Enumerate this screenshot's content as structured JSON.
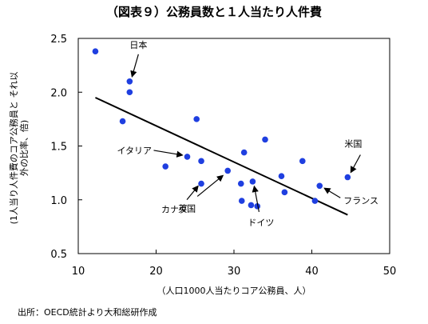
{
  "chart_data": {
    "type": "scatter",
    "title": "（図表９）公務員数と１人当たり人件費",
    "xlabel": "（人口1000人当たりコア公務員、人）",
    "ylabel": "(1人当り人件費のコア公務員と それ以外の比率、倍)",
    "source": "出所：OECD統計より大和総研作成",
    "xlim": [
      10,
      50
    ],
    "ylim": [
      0.5,
      2.5
    ],
    "x_ticks": [
      "10",
      "20",
      "30",
      "40",
      "50"
    ],
    "y_ticks": [
      "0.5",
      "1.0",
      "1.5",
      "2.0",
      "2.5"
    ],
    "grid": false,
    "points": [
      {
        "x": 12.2,
        "y": 2.38
      },
      {
        "x": 16.6,
        "y": 2.1
      },
      {
        "x": 16.6,
        "y": 2.0
      },
      {
        "x": 15.7,
        "y": 1.73
      },
      {
        "x": 25.2,
        "y": 1.75
      },
      {
        "x": 21.2,
        "y": 1.31
      },
      {
        "x": 24.0,
        "y": 1.4
      },
      {
        "x": 25.8,
        "y": 1.15
      },
      {
        "x": 25.8,
        "y": 1.36
      },
      {
        "x": 29.2,
        "y": 1.27
      },
      {
        "x": 30.9,
        "y": 1.15
      },
      {
        "x": 31.3,
        "y": 1.44
      },
      {
        "x": 32.4,
        "y": 1.17
      },
      {
        "x": 34.0,
        "y": 1.56
      },
      {
        "x": 31.0,
        "y": 0.99
      },
      {
        "x": 32.2,
        "y": 0.95
      },
      {
        "x": 33.0,
        "y": 0.94
      },
      {
        "x": 36.1,
        "y": 1.22
      },
      {
        "x": 36.5,
        "y": 1.07
      },
      {
        "x": 38.8,
        "y": 1.36
      },
      {
        "x": 40.4,
        "y": 0.99
      },
      {
        "x": 41.0,
        "y": 1.13
      },
      {
        "x": 44.6,
        "y": 1.21
      }
    ],
    "trendline": {
      "x": [
        12.2,
        44.6
      ],
      "y": [
        1.95,
        0.86
      ]
    },
    "annotations": [
      {
        "label": "日本",
        "x": 16.6,
        "y": 2.1
      },
      {
        "label": "イタリア",
        "x": 24.0,
        "y": 1.4
      },
      {
        "label": "カナダ",
        "x": 25.8,
        "y": 1.15
      },
      {
        "label": "英国",
        "x": 29.2,
        "y": 1.27
      },
      {
        "label": "ドイツ",
        "x": 32.4,
        "y": 1.17
      },
      {
        "label": "米国",
        "x": 44.6,
        "y": 1.21
      },
      {
        "label": "フランス",
        "x": 41.0,
        "y": 1.13
      }
    ],
    "marker_color": "#1f3fe0",
    "line_color": "#000000"
  }
}
